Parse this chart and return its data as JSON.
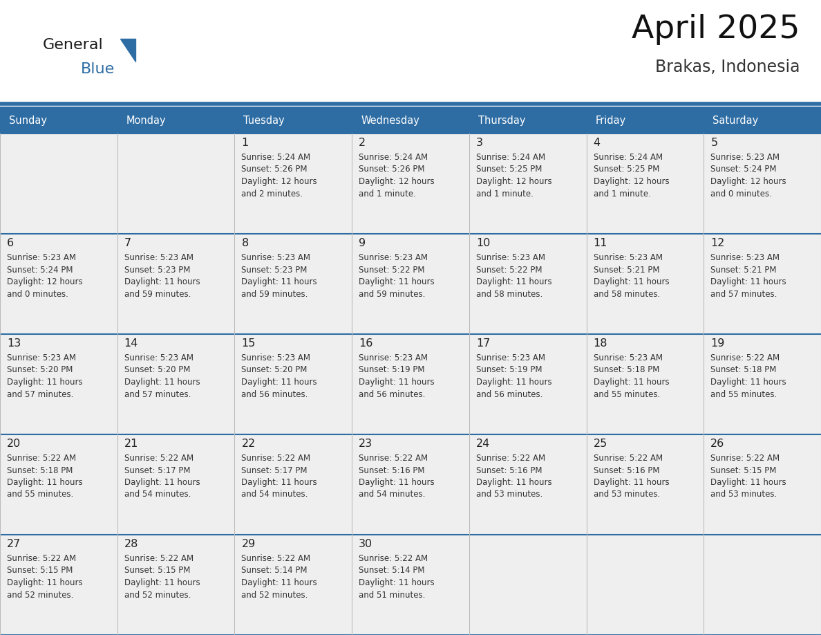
{
  "title": "April 2025",
  "subtitle": "Brakas, Indonesia",
  "header_bg": "#2E6DA4",
  "header_text_color": "#FFFFFF",
  "day_names": [
    "Sunday",
    "Monday",
    "Tuesday",
    "Wednesday",
    "Thursday",
    "Friday",
    "Saturday"
  ],
  "cell_bg": "#EFEFEF",
  "cell_empty_bg": "#F5F5F5",
  "date_color": "#222222",
  "text_color": "#333333",
  "line_color": "#2E6DA4",
  "logo_general_color": "#1a1a1a",
  "logo_blue_color": "#2E6DA4",
  "logo_triangle_color": "#2E6DA4",
  "calendar": [
    [
      {
        "day": "",
        "sunrise": "",
        "sunset": "",
        "daylight": ""
      },
      {
        "day": "",
        "sunrise": "",
        "sunset": "",
        "daylight": ""
      },
      {
        "day": "1",
        "sunrise": "5:24 AM",
        "sunset": "5:26 PM",
        "daylight": "12 hours and 2 minutes."
      },
      {
        "day": "2",
        "sunrise": "5:24 AM",
        "sunset": "5:26 PM",
        "daylight": "12 hours and 1 minute."
      },
      {
        "day": "3",
        "sunrise": "5:24 AM",
        "sunset": "5:25 PM",
        "daylight": "12 hours and 1 minute."
      },
      {
        "day": "4",
        "sunrise": "5:24 AM",
        "sunset": "5:25 PM",
        "daylight": "12 hours and 1 minute."
      },
      {
        "day": "5",
        "sunrise": "5:23 AM",
        "sunset": "5:24 PM",
        "daylight": "12 hours and 0 minutes."
      }
    ],
    [
      {
        "day": "6",
        "sunrise": "5:23 AM",
        "sunset": "5:24 PM",
        "daylight": "12 hours and 0 minutes."
      },
      {
        "day": "7",
        "sunrise": "5:23 AM",
        "sunset": "5:23 PM",
        "daylight": "11 hours and 59 minutes."
      },
      {
        "day": "8",
        "sunrise": "5:23 AM",
        "sunset": "5:23 PM",
        "daylight": "11 hours and 59 minutes."
      },
      {
        "day": "9",
        "sunrise": "5:23 AM",
        "sunset": "5:22 PM",
        "daylight": "11 hours and 59 minutes."
      },
      {
        "day": "10",
        "sunrise": "5:23 AM",
        "sunset": "5:22 PM",
        "daylight": "11 hours and 58 minutes."
      },
      {
        "day": "11",
        "sunrise": "5:23 AM",
        "sunset": "5:21 PM",
        "daylight": "11 hours and 58 minutes."
      },
      {
        "day": "12",
        "sunrise": "5:23 AM",
        "sunset": "5:21 PM",
        "daylight": "11 hours and 57 minutes."
      }
    ],
    [
      {
        "day": "13",
        "sunrise": "5:23 AM",
        "sunset": "5:20 PM",
        "daylight": "11 hours and 57 minutes."
      },
      {
        "day": "14",
        "sunrise": "5:23 AM",
        "sunset": "5:20 PM",
        "daylight": "11 hours and 57 minutes."
      },
      {
        "day": "15",
        "sunrise": "5:23 AM",
        "sunset": "5:20 PM",
        "daylight": "11 hours and 56 minutes."
      },
      {
        "day": "16",
        "sunrise": "5:23 AM",
        "sunset": "5:19 PM",
        "daylight": "11 hours and 56 minutes."
      },
      {
        "day": "17",
        "sunrise": "5:23 AM",
        "sunset": "5:19 PM",
        "daylight": "11 hours and 56 minutes."
      },
      {
        "day": "18",
        "sunrise": "5:23 AM",
        "sunset": "5:18 PM",
        "daylight": "11 hours and 55 minutes."
      },
      {
        "day": "19",
        "sunrise": "5:22 AM",
        "sunset": "5:18 PM",
        "daylight": "11 hours and 55 minutes."
      }
    ],
    [
      {
        "day": "20",
        "sunrise": "5:22 AM",
        "sunset": "5:18 PM",
        "daylight": "11 hours and 55 minutes."
      },
      {
        "day": "21",
        "sunrise": "5:22 AM",
        "sunset": "5:17 PM",
        "daylight": "11 hours and 54 minutes."
      },
      {
        "day": "22",
        "sunrise": "5:22 AM",
        "sunset": "5:17 PM",
        "daylight": "11 hours and 54 minutes."
      },
      {
        "day": "23",
        "sunrise": "5:22 AM",
        "sunset": "5:16 PM",
        "daylight": "11 hours and 54 minutes."
      },
      {
        "day": "24",
        "sunrise": "5:22 AM",
        "sunset": "5:16 PM",
        "daylight": "11 hours and 53 minutes."
      },
      {
        "day": "25",
        "sunrise": "5:22 AM",
        "sunset": "5:16 PM",
        "daylight": "11 hours and 53 minutes."
      },
      {
        "day": "26",
        "sunrise": "5:22 AM",
        "sunset": "5:15 PM",
        "daylight": "11 hours and 53 minutes."
      }
    ],
    [
      {
        "day": "27",
        "sunrise": "5:22 AM",
        "sunset": "5:15 PM",
        "daylight": "11 hours and 52 minutes."
      },
      {
        "day": "28",
        "sunrise": "5:22 AM",
        "sunset": "5:15 PM",
        "daylight": "11 hours and 52 minutes."
      },
      {
        "day": "29",
        "sunrise": "5:22 AM",
        "sunset": "5:14 PM",
        "daylight": "11 hours and 52 minutes."
      },
      {
        "day": "30",
        "sunrise": "5:22 AM",
        "sunset": "5:14 PM",
        "daylight": "11 hours and 51 minutes."
      },
      {
        "day": "",
        "sunrise": "",
        "sunset": "",
        "daylight": ""
      },
      {
        "day": "",
        "sunrise": "",
        "sunset": "",
        "daylight": ""
      },
      {
        "day": "",
        "sunrise": "",
        "sunset": "",
        "daylight": ""
      }
    ]
  ]
}
